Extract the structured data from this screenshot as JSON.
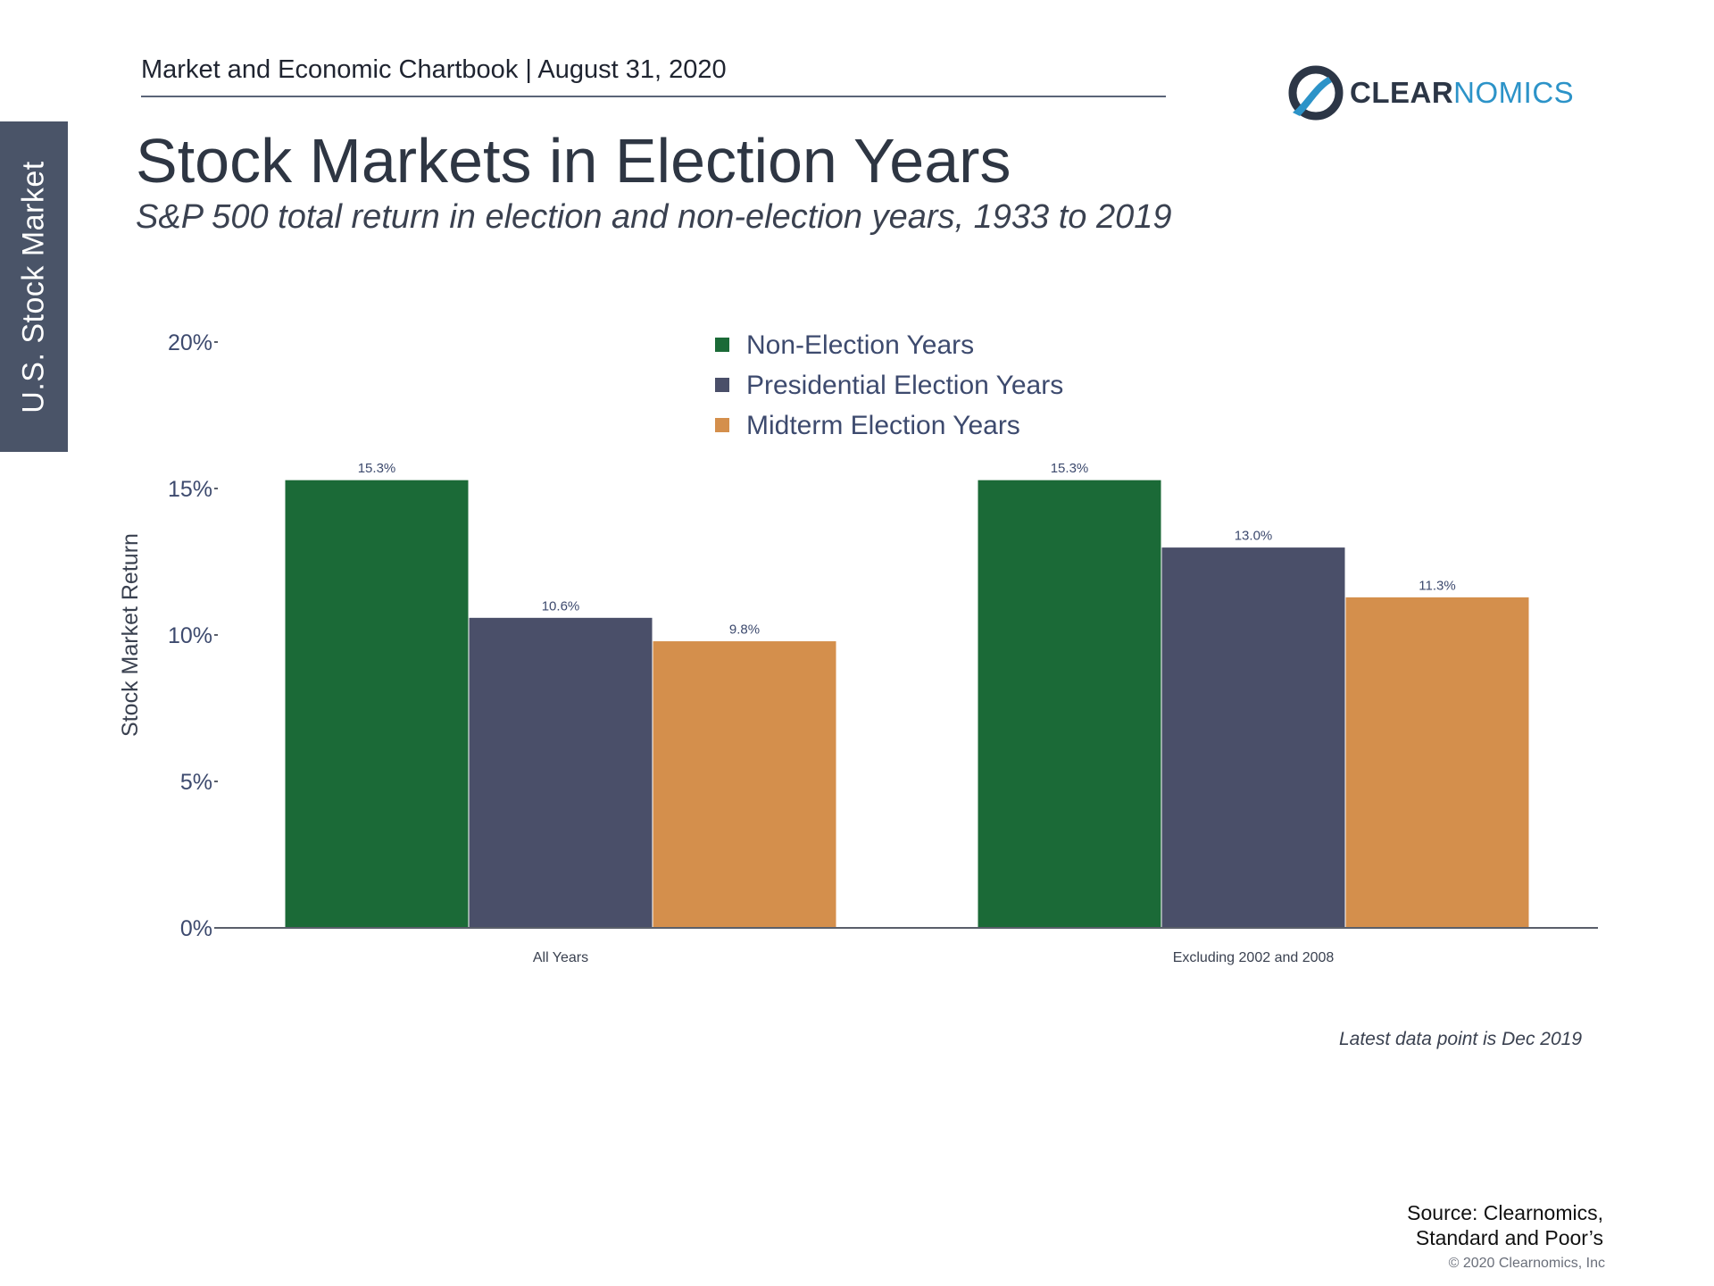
{
  "header": {
    "text": "Market and Economic Chartbook | August 31, 2020",
    "side_tab": "U.S. Stock Market",
    "logo_clear": "CLEAR",
    "logo_nomics": "NOMICS"
  },
  "title": "Stock Markets in Election Years",
  "subtitle": "S&P 500 total return in election and non-election years, 1933 to 2019",
  "chart_data": {
    "type": "bar",
    "categories": [
      "All Years",
      "Excluding 2002 and 2008"
    ],
    "series": [
      {
        "name": "Non-Election Years",
        "color": "#1b6a37",
        "values": [
          15.3,
          15.3
        ],
        "labels": [
          "15.3%",
          "15.3%"
        ]
      },
      {
        "name": "Presidential Election Years",
        "color": "#4a4f69",
        "values": [
          10.6,
          13.0
        ],
        "labels": [
          "10.6%",
          "13.0%"
        ]
      },
      {
        "name": "Midterm Election Years",
        "color": "#d48f4c",
        "values": [
          9.8,
          11.3
        ],
        "labels": [
          "9.8%",
          "11.3%"
        ]
      }
    ],
    "ylabel": "Stock Market Return",
    "xlabel": "",
    "ylim": [
      0,
      20
    ],
    "yticks": [
      0,
      5,
      10,
      15,
      20
    ],
    "ytick_labels": [
      "0%",
      "5%",
      "10%",
      "15%",
      "20%"
    ],
    "legend_position": "top-center",
    "grid": false
  },
  "note": "Latest data point is Dec 2019",
  "source": {
    "line1": "Source: Clearnomics,",
    "line2": "Standard and Poor’s"
  },
  "copyright": "© 2020 Clearnomics, Inc"
}
